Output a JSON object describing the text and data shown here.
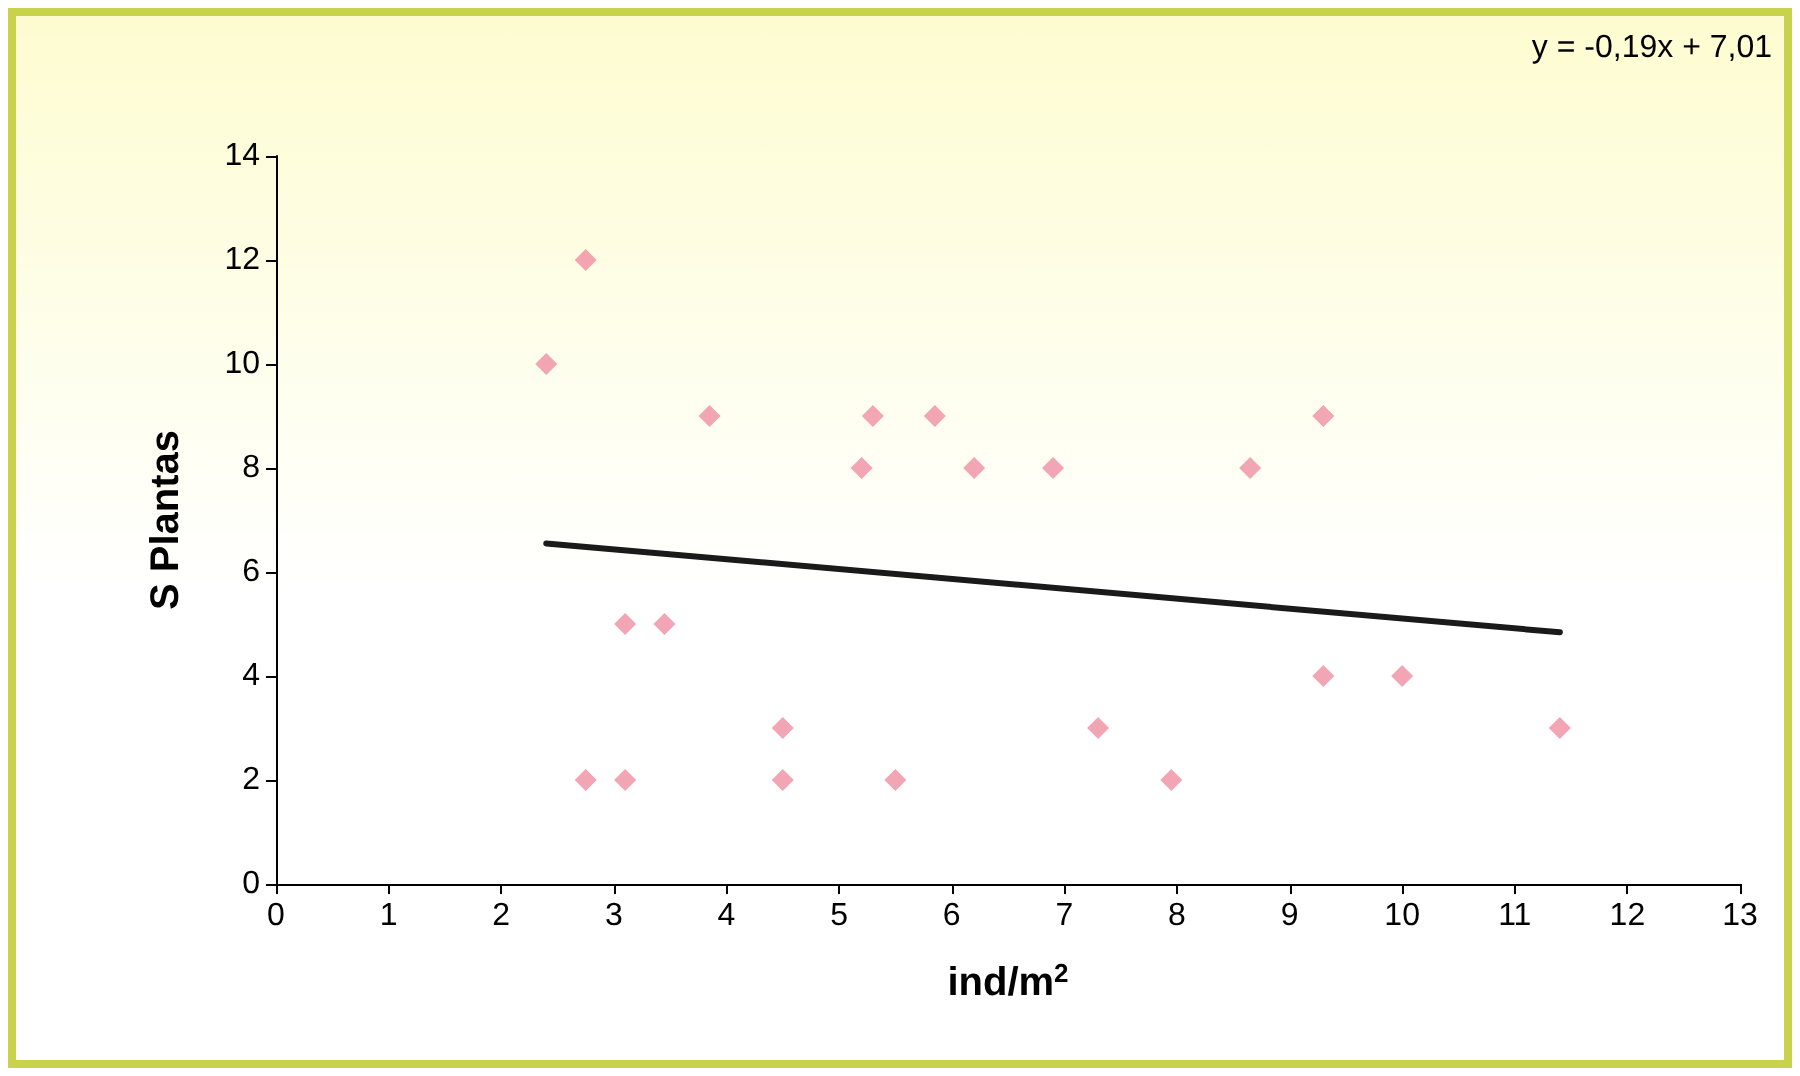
{
  "chart_data": {
    "type": "scatter",
    "xlabel": "ind/m$^{2}$",
    "ylabel": "S Plantas",
    "annotations": [
      "y = -0,19x + 7,01"
    ],
    "marker": "diamond",
    "grid": false,
    "xlim": [
      0,
      13
    ],
    "xticks": [
      0,
      1,
      2,
      3,
      4,
      5,
      6,
      7,
      8,
      9,
      10,
      11,
      12,
      13
    ],
    "ylim": [
      0,
      14
    ],
    "yticks": [
      0,
      2,
      4,
      6,
      8,
      10,
      12,
      14
    ],
    "series": [
      {
        "color": "#ef8fa3",
        "x": [
          2.4,
          2.75,
          2.75,
          3.1,
          3.1,
          3.45,
          3.85,
          4.5,
          4.5,
          5.2,
          5.3,
          5.5,
          5.85,
          6.2,
          6.9,
          7.3,
          7.95,
          8.65,
          9.3,
          9.3,
          10.0,
          11.4
        ],
        "values": [
          10,
          12,
          2,
          5,
          2,
          5,
          9,
          3,
          2,
          8,
          9,
          2,
          9,
          8,
          8,
          3,
          2,
          8,
          9,
          4,
          4,
          3
        ]
      },
      {
        "type": "line",
        "color": "#1a1a1a",
        "x": [
          2.4,
          11.4
        ],
        "values": [
          6.55,
          4.84
        ],
        "marker": "none"
      }
    ]
  }
}
